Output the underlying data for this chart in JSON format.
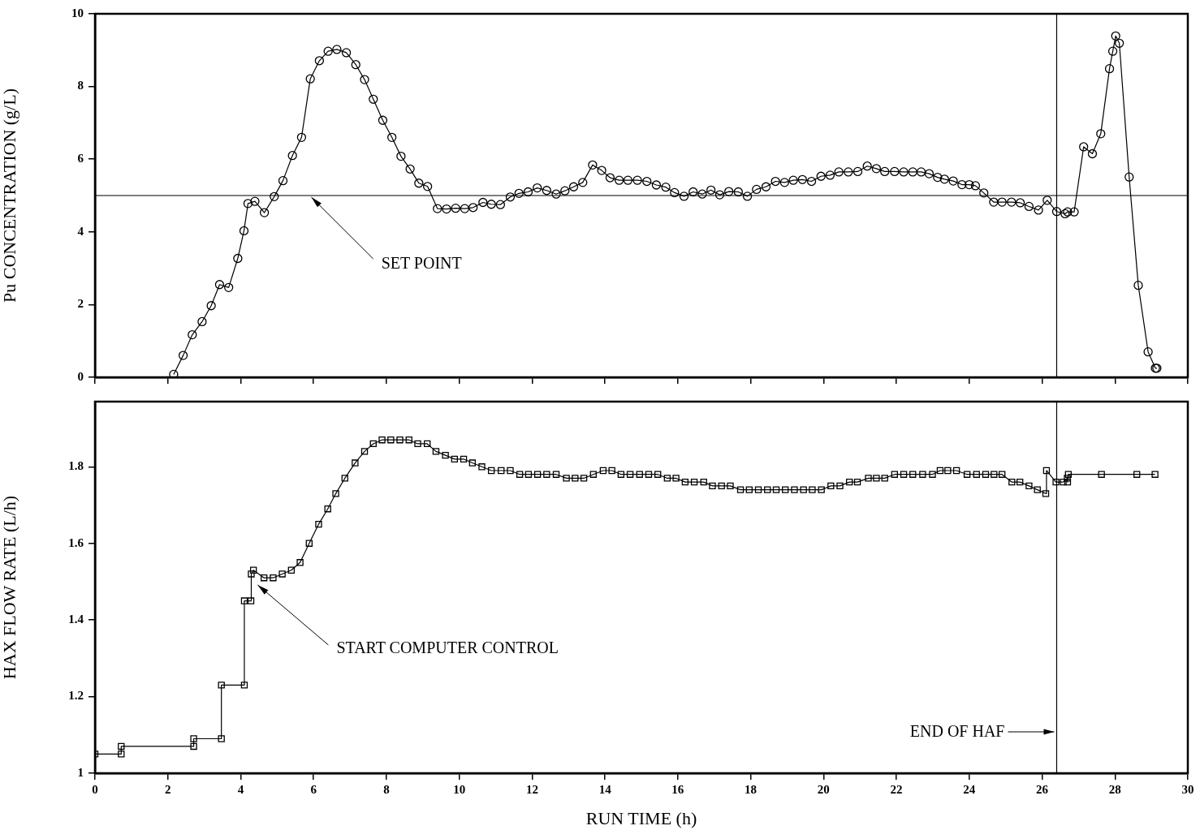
{
  "chart_data": [
    {
      "type": "line",
      "ylabel": "Pu CONCENTRATION (g/L)",
      "xlim": [
        0,
        30
      ],
      "xticks": [
        0,
        2,
        4,
        6,
        8,
        10,
        12,
        14,
        16,
        18,
        20,
        22,
        24,
        26,
        28,
        30
      ],
      "ylim": [
        0,
        10
      ],
      "yticks": [
        0,
        2,
        4,
        6,
        8,
        10
      ],
      "tick_labels": "y",
      "grid": false,
      "legend": false,
      "marker": "circle",
      "line_style": "solid",
      "series": [
        {
          "color": "#000000",
          "x": [
            2.16,
            2.42,
            2.67,
            2.94,
            3.19,
            3.42,
            3.67,
            3.92,
            4.09,
            4.2,
            4.39,
            4.65,
            4.92,
            5.16,
            5.42,
            5.67,
            5.91,
            6.16,
            6.4,
            6.64,
            6.9,
            7.16,
            7.4,
            7.64,
            7.9,
            8.15,
            8.4,
            8.65,
            8.89,
            9.13,
            9.4,
            9.65,
            9.9,
            10.15,
            10.38,
            10.65,
            10.88,
            11.13,
            11.4,
            11.64,
            11.89,
            12.14,
            12.4,
            12.66,
            12.9,
            13.14,
            13.39,
            13.66,
            13.91,
            14.14,
            14.39,
            14.63,
            14.89,
            15.15,
            15.41,
            15.67,
            15.91,
            16.17,
            16.42,
            16.67,
            16.91,
            17.15,
            17.4,
            17.66,
            17.91,
            18.16,
            18.42,
            18.68,
            18.93,
            19.17,
            19.42,
            19.67,
            19.93,
            20.18,
            20.42,
            20.68,
            20.94,
            21.2,
            21.45,
            21.68,
            21.95,
            22.2,
            22.45,
            22.68,
            22.9,
            23.13,
            23.32,
            23.56,
            23.8,
            24.0,
            24.17,
            24.4,
            24.67,
            24.9,
            25.16,
            25.4,
            25.64,
            25.9,
            26.14,
            26.4,
            26.63,
            26.7,
            26.88,
            27.14,
            27.38,
            27.61,
            27.85,
            27.94,
            28.02,
            28.12,
            28.39,
            28.64,
            28.91,
            29.11,
            29.15
          ],
          "values": [
            0.08,
            0.6,
            1.17,
            1.53,
            1.97,
            2.55,
            2.47,
            3.27,
            4.03,
            4.78,
            4.84,
            4.53,
            4.97,
            5.41,
            6.1,
            6.6,
            8.21,
            8.71,
            8.97,
            9.02,
            8.93,
            8.6,
            8.19,
            7.65,
            7.07,
            6.6,
            6.08,
            5.73,
            5.34,
            5.25,
            4.64,
            4.63,
            4.65,
            4.64,
            4.67,
            4.81,
            4.76,
            4.75,
            4.96,
            5.06,
            5.1,
            5.21,
            5.14,
            5.04,
            5.13,
            5.24,
            5.36,
            5.84,
            5.69,
            5.49,
            5.42,
            5.42,
            5.42,
            5.39,
            5.29,
            5.23,
            5.08,
            4.98,
            5.1,
            5.04,
            5.15,
            5.02,
            5.11,
            5.1,
            4.98,
            5.17,
            5.24,
            5.39,
            5.36,
            5.42,
            5.44,
            5.39,
            5.53,
            5.56,
            5.65,
            5.65,
            5.66,
            5.81,
            5.74,
            5.66,
            5.66,
            5.65,
            5.65,
            5.65,
            5.6,
            5.5,
            5.45,
            5.4,
            5.3,
            5.3,
            5.27,
            5.07,
            4.82,
            4.82,
            4.82,
            4.8,
            4.7,
            4.6,
            4.87,
            4.56,
            4.5,
            4.55,
            4.55,
            6.34,
            6.15,
            6.7,
            8.49,
            8.97,
            9.39,
            9.19,
            5.51,
            2.53,
            0.7,
            0.25,
            0.25
          ]
        }
      ],
      "ref_lines": [
        {
          "axis": "y",
          "value": 5,
          "label": "SET POINT",
          "color": "#000000"
        },
        {
          "axis": "x",
          "value": 26.4,
          "color": "#000000"
        }
      ]
    },
    {
      "type": "line",
      "xlabel": "RUN TIME (h)",
      "ylabel": "HAX FLOW RATE (L/h)",
      "xlim": [
        0,
        30
      ],
      "xticks": [
        0,
        2,
        4,
        6,
        8,
        10,
        12,
        14,
        16,
        18,
        20,
        22,
        24,
        26,
        28,
        30
      ],
      "ylim": [
        1,
        1.97
      ],
      "yticks": [
        1,
        1.2,
        1.4,
        1.6,
        1.8
      ],
      "grid": false,
      "legend": false,
      "marker": "square",
      "line_style": "solid",
      "series": [
        {
          "color": "#000000",
          "x": [
            0,
            0.72,
            0.72,
            2.71,
            2.71,
            3.47,
            3.47,
            4.1,
            4.1,
            4.28,
            4.29,
            4.35,
            4.64,
            4.89,
            5.14,
            5.39,
            5.63,
            5.88,
            6.14,
            6.39,
            6.61,
            6.86,
            7.14,
            7.4,
            7.64,
            7.88,
            8.12,
            8.37,
            8.62,
            8.86,
            9.12,
            9.36,
            9.62,
            9.87,
            10.12,
            10.36,
            10.62,
            10.88,
            11.15,
            11.4,
            11.66,
            11.9,
            12.15,
            12.4,
            12.66,
            12.94,
            13.18,
            13.42,
            13.68,
            13.95,
            14.19,
            14.44,
            14.69,
            14.95,
            15.2,
            15.45,
            15.71,
            15.95,
            16.2,
            16.45,
            16.71,
            16.95,
            17.2,
            17.44,
            17.72,
            17.96,
            18.21,
            18.46,
            18.7,
            18.95,
            19.2,
            19.45,
            19.69,
            19.94,
            20.2,
            20.45,
            20.71,
            20.93,
            21.23,
            21.45,
            21.68,
            21.95,
            22.2,
            22.45,
            22.72,
            22.99,
            23.2,
            23.41,
            23.65,
            23.94,
            24.2,
            24.45,
            24.68,
            24.9,
            25.17,
            25.39,
            25.64,
            25.87,
            26.1,
            26.12,
            26.38,
            26.58,
            26.69,
            26.7,
            26.72,
            27.63,
            28.6,
            29.1
          ],
          "values": [
            1.05,
            1.05,
            1.07,
            1.07,
            1.09,
            1.09,
            1.23,
            1.23,
            1.45,
            1.45,
            1.52,
            1.53,
            1.51,
            1.51,
            1.52,
            1.53,
            1.55,
            1.6,
            1.65,
            1.69,
            1.73,
            1.77,
            1.81,
            1.84,
            1.86,
            1.87,
            1.87,
            1.87,
            1.87,
            1.86,
            1.86,
            1.84,
            1.83,
            1.82,
            1.82,
            1.81,
            1.8,
            1.79,
            1.79,
            1.79,
            1.78,
            1.78,
            1.78,
            1.78,
            1.78,
            1.77,
            1.77,
            1.77,
            1.78,
            1.79,
            1.79,
            1.78,
            1.78,
            1.78,
            1.78,
            1.78,
            1.77,
            1.77,
            1.76,
            1.76,
            1.76,
            1.75,
            1.75,
            1.75,
            1.74,
            1.74,
            1.74,
            1.74,
            1.74,
            1.74,
            1.74,
            1.74,
            1.74,
            1.74,
            1.75,
            1.75,
            1.76,
            1.76,
            1.77,
            1.77,
            1.77,
            1.78,
            1.78,
            1.78,
            1.78,
            1.78,
            1.79,
            1.79,
            1.79,
            1.78,
            1.78,
            1.78,
            1.78,
            1.78,
            1.76,
            1.76,
            1.75,
            1.74,
            1.73,
            1.79,
            1.76,
            1.76,
            1.77,
            1.76,
            1.78,
            1.78,
            1.78,
            1.78
          ]
        }
      ],
      "ref_lines": [
        {
          "axis": "x",
          "value": 26.4,
          "label": "END OF HAF",
          "color": "#000000"
        }
      ],
      "annotations": [
        {
          "text": "START COMPUTER CONTROL",
          "x": 4.4,
          "y": 1.5
        }
      ]
    }
  ]
}
